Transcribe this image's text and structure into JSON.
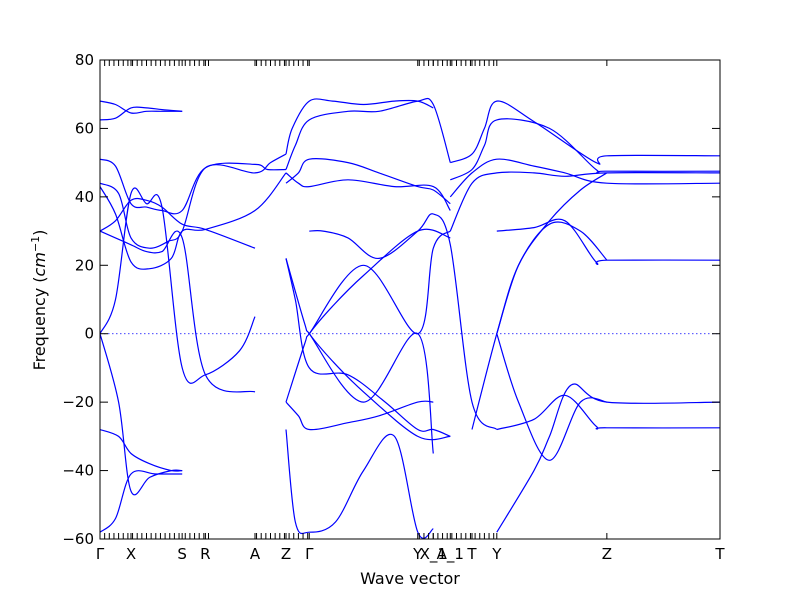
{
  "chart_data": {
    "type": "line",
    "xlabel": "Wave vector",
    "ylabel": "Frequency",
    "ylabel_unit": "cm",
    "ylabel_unit_exp": "−1",
    "xlim": [
      0,
      20
    ],
    "ylim": [
      -60,
      80
    ],
    "yticks": [
      -60,
      -40,
      -20,
      0,
      20,
      40,
      60,
      80
    ],
    "xticks": [
      {
        "label": "Γ",
        "x": 0.0
      },
      {
        "label": "X",
        "x": 1.0
      },
      {
        "label": "S",
        "x": 2.65
      },
      {
        "label": "R",
        "x": 3.4
      },
      {
        "label": "A",
        "x": 5.0
      },
      {
        "label": "Z",
        "x": 6.0
      },
      {
        "label": "Γ",
        "x": 6.75
      },
      {
        "label": "Y",
        "x": 10.25
      },
      {
        "label": "X_1",
        "x": 10.75
      },
      {
        "label": "A_1",
        "x": 11.3
      },
      {
        "label": "T",
        "x": 12.0
      },
      {
        "label": "Y",
        "x": 12.8
      },
      {
        "label": "Z",
        "x": 16.35
      },
      {
        "label": "T",
        "x": 20.0
      }
    ],
    "grid": false,
    "zero_line": true,
    "series": [
      {
        "x": [
          0,
          0.5,
          1,
          1.5,
          2,
          2.65
        ],
        "values": [
          68,
          67,
          64.5,
          65,
          65,
          65
        ]
      },
      {
        "x": [
          0,
          0.5,
          1,
          1.5,
          2,
          2.65
        ],
        "values": [
          62.5,
          63,
          66,
          66,
          65.5,
          65
        ]
      },
      {
        "x": [
          0,
          0.5,
          1,
          1.5,
          2,
          2.65,
          3.4,
          5,
          5.4,
          6
        ],
        "values": [
          51,
          49,
          38,
          37,
          36,
          36,
          48.5,
          49.5,
          48,
          48
        ]
      },
      {
        "x": [
          0,
          0.6,
          1,
          1.6,
          2.2,
          2.65,
          3.4,
          5,
          5.5,
          6
        ],
        "values": [
          44,
          41,
          28,
          25,
          27,
          30,
          48.5,
          47,
          50,
          52.5
        ]
      },
      {
        "x": [
          0,
          0.5,
          1,
          1.6,
          2.3,
          2.65,
          3.4,
          5,
          6
        ],
        "values": [
          43,
          35,
          21,
          19,
          22,
          30,
          30.5,
          36,
          47
        ]
      },
      {
        "x": [
          0,
          0.5,
          1,
          1.5,
          2,
          2.65,
          3.4,
          5
        ],
        "values": [
          30,
          33,
          39,
          39,
          37,
          32,
          30.5,
          25
        ]
      },
      {
        "x": [
          0,
          0.5,
          1,
          1.5,
          2,
          2.65,
          3.4,
          5
        ],
        "values": [
          30,
          28,
          26,
          24,
          24,
          28,
          -12,
          -17
        ]
      },
      {
        "x": [
          0,
          0.5,
          1,
          1.5,
          2,
          2.65,
          3.4,
          4.5,
          5
        ],
        "values": [
          0,
          10,
          41,
          38,
          37,
          -10,
          -12,
          -5,
          5
        ]
      },
      {
        "x": [
          0,
          0.6,
          1,
          1.6,
          2.3,
          2.65
        ],
        "values": [
          0,
          -20,
          -46,
          -42,
          -40,
          -40
        ]
      },
      {
        "x": [
          0,
          0.6,
          1,
          1.6,
          2.3,
          2.65
        ],
        "values": [
          -28,
          -30,
          -35,
          -38,
          -40,
          -40
        ]
      },
      {
        "x": [
          0,
          0.5,
          1,
          1.8,
          2.65
        ],
        "values": [
          -58,
          -54,
          -41,
          -41,
          -41
        ]
      },
      {
        "x": [
          6,
          6.2,
          6.75,
          7.5,
          8.5,
          9.5,
          10.25,
          10.75
        ],
        "values": [
          52.5,
          60,
          68,
          68,
          67,
          68,
          68,
          66
        ]
      },
      {
        "x": [
          6,
          6.3,
          6.75,
          8,
          9,
          10.25,
          10.75,
          11.3
        ],
        "values": [
          48,
          55,
          62.5,
          65,
          65,
          68,
          67,
          50
        ]
      },
      {
        "x": [
          6,
          6.4,
          6.75,
          8,
          9,
          10.25,
          10.75,
          11.3
        ],
        "values": [
          44,
          47,
          51,
          50,
          47,
          43,
          42,
          38
        ]
      },
      {
        "x": [
          6,
          6.4,
          6.75,
          8,
          9.5,
          10.75,
          11.3
        ],
        "values": [
          47,
          44,
          43,
          45,
          43,
          43,
          36
        ]
      },
      {
        "x": [
          6,
          6.3,
          6.75,
          8,
          9.2,
          10.25,
          10.75,
          11.3
        ],
        "values": [
          22,
          10,
          -10,
          -12,
          -20,
          -28,
          -28,
          -30
        ]
      },
      {
        "x": [
          6,
          6.4,
          6.75,
          8,
          9,
          10.25,
          10.75
        ],
        "values": [
          -20,
          -24,
          -28,
          -26,
          -24,
          -20,
          -20
        ]
      },
      {
        "x": [
          6,
          6.3,
          6.75,
          7.6,
          8.5,
          9.5,
          10.25,
          10.75
        ],
        "values": [
          -28,
          -55,
          -58,
          -55,
          -40,
          -30,
          -58,
          -57
        ]
      },
      {
        "x": [
          6,
          6.6,
          6.75,
          7.5,
          8.5,
          10.25,
          11.3
        ],
        "values": [
          -20,
          -3,
          0,
          8,
          17,
          30,
          28
        ]
      },
      {
        "x": [
          6,
          6.6,
          6.75,
          7.5,
          8.5,
          10.25,
          11.3
        ],
        "values": [
          22,
          3,
          0,
          -8,
          -17,
          -30,
          -30
        ]
      },
      {
        "x": [
          6.75,
          8.5,
          10.25,
          10.75,
          11.3
        ],
        "values": [
          0,
          20,
          0,
          25,
          30
        ]
      },
      {
        "x": [
          6.75,
          8.5,
          10.25,
          10.75
        ],
        "values": [
          0,
          -20,
          0,
          -35
        ]
      },
      {
        "x": [
          6.75,
          7.2,
          8,
          9,
          10.25,
          10.75,
          11.3,
          12,
          12.8
        ],
        "values": [
          30,
          30,
          28,
          22,
          30,
          35,
          26,
          -20,
          -28
        ]
      },
      {
        "x": [
          11.3,
          12,
          12.4,
          12.8,
          14,
          16,
          16.35,
          20
        ],
        "values": [
          50,
          52.5,
          60,
          68,
          62,
          50,
          52,
          52
        ]
      },
      {
        "x": [
          11.3,
          12,
          12.4,
          12.8,
          14.5,
          16,
          16.35,
          20
        ],
        "values": [
          45,
          48,
          55,
          62.5,
          60,
          48,
          47.5,
          47.5
        ]
      },
      {
        "x": [
          11.3,
          12,
          12.8,
          14,
          15,
          16.35,
          20
        ],
        "values": [
          40,
          47,
          51,
          49,
          47,
          44,
          44
        ]
      },
      {
        "x": [
          11.3,
          12,
          12.8,
          14,
          15,
          16.35,
          20
        ],
        "values": [
          30,
          44,
          47,
          47,
          46,
          47,
          47
        ]
      },
      {
        "x": [
          12.8,
          14,
          15,
          16,
          16.35,
          20
        ],
        "values": [
          30,
          31,
          33,
          21,
          21.5,
          21.5
        ]
      },
      {
        "x": [
          12.8,
          13.5,
          14.5,
          15.5,
          16.35
        ],
        "values": [
          0,
          20,
          33,
          42,
          47
        ]
      },
      {
        "x": [
          12.8,
          13.5,
          14.5,
          15.5,
          16.35
        ],
        "values": [
          0,
          -20,
          -37,
          -20,
          -20
        ]
      },
      {
        "x": [
          12.8,
          14,
          15,
          16,
          16.35,
          20
        ],
        "values": [
          -28,
          -25,
          -18,
          -27,
          -27.5,
          -27.5
        ]
      },
      {
        "x": [
          12.8,
          14,
          14.5,
          15.2,
          16.35,
          20
        ],
        "values": [
          -58,
          -40,
          -30,
          -15,
          -20,
          -20
        ]
      },
      {
        "x": [
          12,
          12.8,
          13.5,
          14.5,
          15.5,
          16.35
        ],
        "values": [
          -28,
          0,
          20,
          32,
          30,
          21.5
        ]
      }
    ],
    "x_tick_marks": [
      0.15,
      0.3,
      0.45,
      0.6,
      0.75,
      0.9,
      1.05,
      1.2,
      1.35,
      1.5,
      1.65,
      1.8,
      1.95,
      2.1,
      2.25,
      2.4,
      2.55,
      2.75,
      2.9,
      3.05,
      3.2,
      3.35,
      3.5,
      5.05,
      5.2,
      5.35,
      5.5,
      5.65,
      5.8,
      5.95,
      6.1,
      6.25,
      6.4,
      6.55,
      6.7,
      10.3,
      10.45,
      10.6,
      10.75,
      10.9,
      11.05,
      11.2,
      11.35,
      11.5,
      11.65,
      11.8,
      11.95,
      12.1,
      12.25,
      12.4,
      12.55,
      12.7
    ]
  }
}
